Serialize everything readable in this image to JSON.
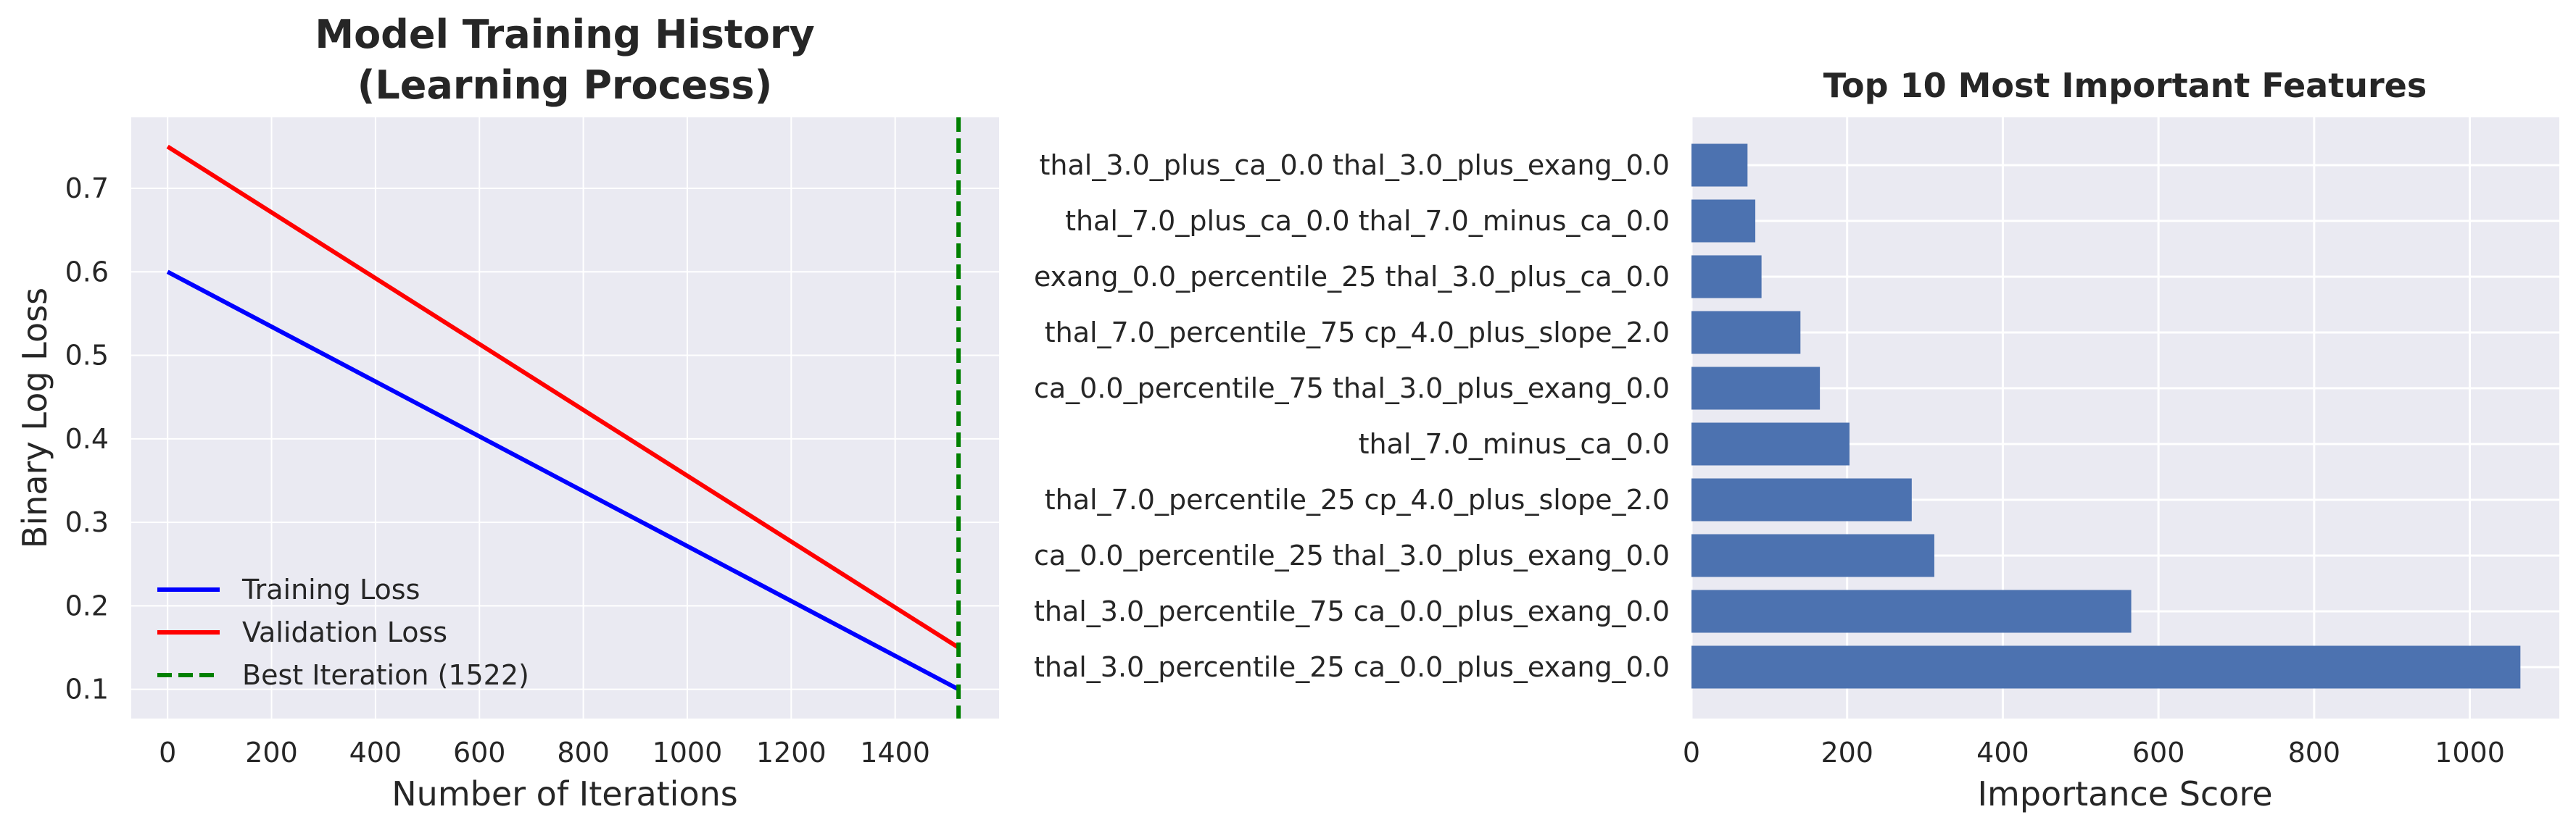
{
  "chart_data": [
    {
      "type": "line",
      "title": "Model Training History\n(Learning Process)",
      "xlabel": "Number of Iterations",
      "ylabel": "Binary Log Loss",
      "xlim": [
        -70,
        1600
      ],
      "ylim": [
        0.065,
        0.785
      ],
      "xticks": [
        0,
        200,
        400,
        600,
        800,
        1000,
        1200,
        1400
      ],
      "yticks": [
        0.1,
        0.2,
        0.3,
        0.4,
        0.5,
        0.6,
        0.7
      ],
      "grid": true,
      "legend_position": "lower-left",
      "series": [
        {
          "name": "Training Loss",
          "color": "#0000ff",
          "style": "solid",
          "x": [
            0,
            1522
          ],
          "y": [
            0.6,
            0.1
          ]
        },
        {
          "name": "Validation Loss",
          "color": "#ff0000",
          "style": "solid",
          "x": [
            0,
            1522
          ],
          "y": [
            0.75,
            0.15
          ]
        }
      ],
      "vlines": [
        {
          "name": "Best Iteration (1522)",
          "color": "#008000",
          "style": "dashed",
          "x": 1522
        }
      ]
    },
    {
      "type": "bar",
      "orientation": "horizontal",
      "title": "Top 10 Most Important Features",
      "xlabel": "Importance Score",
      "ylabel": "",
      "xlim": [
        0,
        1115
      ],
      "xticks": [
        0,
        200,
        400,
        600,
        800,
        1000
      ],
      "grid": true,
      "bar_color": "#4c72b0",
      "categories": [
        "thal_3.0_plus_ca_0.0 thal_3.0_plus_exang_0.0",
        "thal_7.0_plus_ca_0.0 thal_7.0_minus_ca_0.0",
        "exang_0.0_percentile_25 thal_3.0_plus_ca_0.0",
        "thal_7.0_percentile_75 cp_4.0_plus_slope_2.0",
        "ca_0.0_percentile_75 thal_3.0_plus_exang_0.0",
        "thal_7.0_minus_ca_0.0",
        "thal_7.0_percentile_25 cp_4.0_plus_slope_2.0",
        "ca_0.0_percentile_25 thal_3.0_plus_exang_0.0",
        "thal_3.0_percentile_75 ca_0.0_plus_exang_0.0",
        "thal_3.0_percentile_25 ca_0.0_plus_exang_0.0"
      ],
      "values": [
        72,
        82,
        90,
        140,
        165,
        203,
        283,
        312,
        565,
        1065
      ]
    }
  ]
}
